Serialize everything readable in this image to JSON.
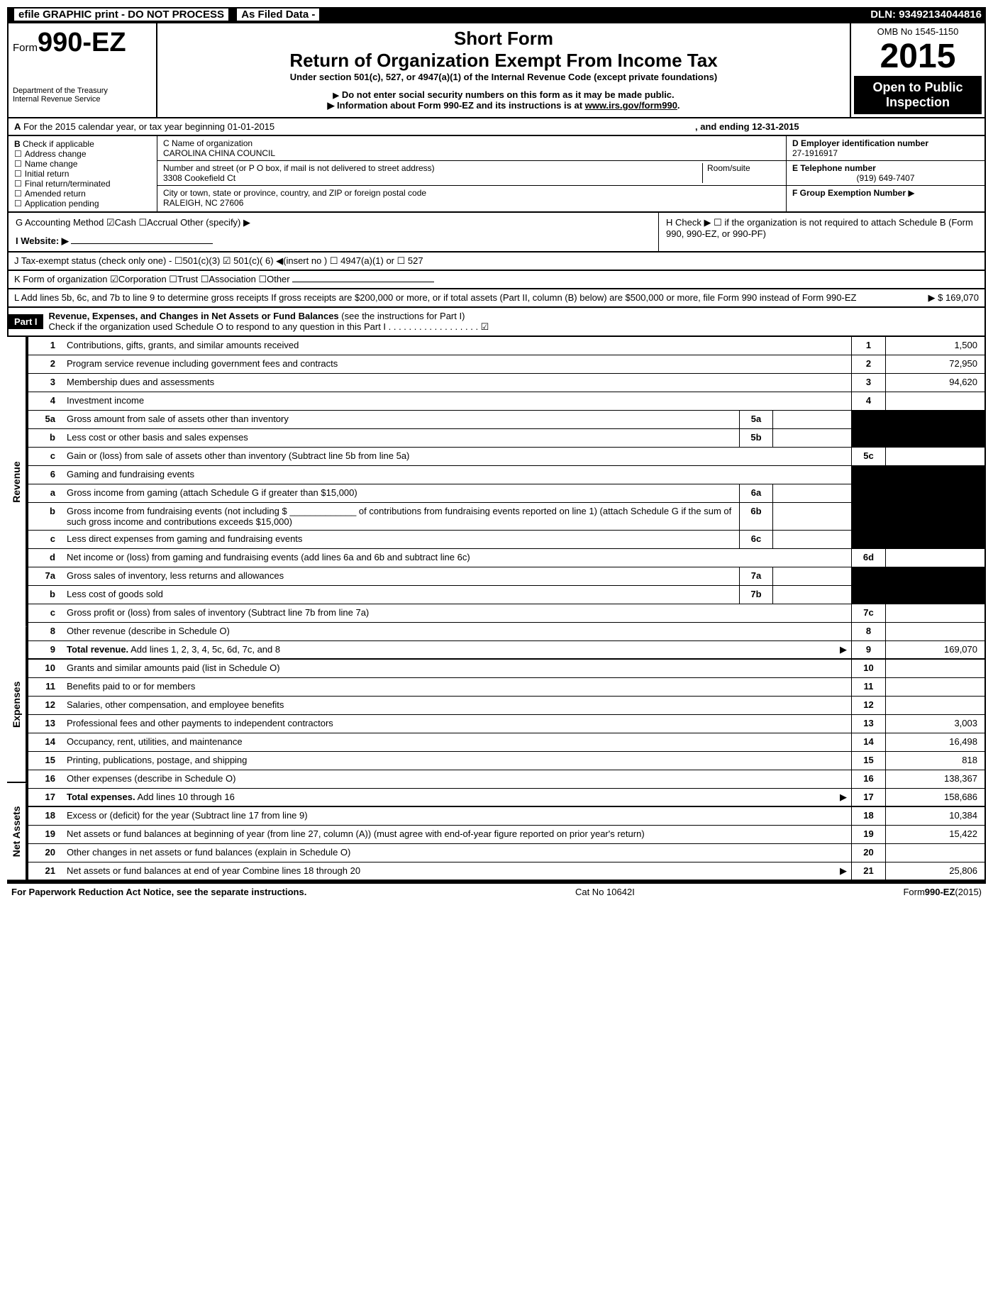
{
  "topbar": {
    "efile": "efile GRAPHIC print - DO NOT PROCESS",
    "asfiled": "As Filed Data -",
    "dln_label": "DLN:",
    "dln": "93492134044816"
  },
  "header": {
    "form_prefix": "Form",
    "form_no": "990-EZ",
    "dept1": "Department of the Treasury",
    "dept2": "Internal Revenue Service",
    "short": "Short Form",
    "title": "Return of Organization Exempt From Income Tax",
    "under": "Under section 501(c), 527, or 4947(a)(1) of the Internal Revenue Code (except private foundations)",
    "warn1": "Do not enter social security numbers on this form as it may be made public.",
    "warn2_pre": "Information about Form 990-EZ and its instructions is at ",
    "warn2_link": "www.irs.gov/form990",
    "omb": "OMB No  1545-1150",
    "year": "2015",
    "open1": "Open to Public",
    "open2": "Inspection"
  },
  "A": {
    "text": "For the 2015 calendar year, or tax year beginning 01-01-2015",
    "ending": ", and ending 12-31-2015"
  },
  "B": {
    "title": "Check if applicable",
    "items": [
      "Address change",
      "Name change",
      "Initial return",
      "Final return/terminated",
      "Amended return",
      "Application pending"
    ]
  },
  "C": {
    "name_lbl": "C Name of organization",
    "name": "CAROLINA CHINA COUNCIL",
    "street_lbl": "Number and street (or P  O  box, if mail is not delivered to street address)",
    "room_lbl": "Room/suite",
    "street": "3308 Cookefield Ct",
    "city_lbl": "City or town, state or province, country, and ZIP or foreign postal code",
    "city": "RALEIGH, NC  27606"
  },
  "D": {
    "lbl": "D Employer identification number",
    "val": "27-1916917"
  },
  "E": {
    "lbl": "E Telephone number",
    "val": "(919) 649-7407"
  },
  "F": {
    "lbl": "F Group Exemption Number",
    "arrow": "▶"
  },
  "G": {
    "text": "G Accounting Method   ☑Cash  ☐Accrual  Other (specify) ▶"
  },
  "H": {
    "text": "H  Check ▶ ☐ if the organization is not required to attach Schedule B (Form 990, 990-EZ, or 990-PF)"
  },
  "I": {
    "text": "I Website: ▶"
  },
  "J": {
    "text": "J Tax-exempt status (check only one) - ☐501(c)(3) ☑ 501(c)( 6) ◀(insert no ) ☐ 4947(a)(1) or ☐ 527"
  },
  "K": {
    "text": "K Form of organization  ☑Corporation  ☐Trust  ☐Association  ☐Other"
  },
  "L": {
    "text": "L Add lines 5b, 6c, and 7b to line 9 to determine gross receipts  If gross receipts are $200,000 or more, or if total assets (Part II, column (B) below) are $500,000 or more, file Form 990 instead of Form 990-EZ",
    "arrow": "▶",
    "val": "$ 169,070"
  },
  "part1": {
    "label": "Part I",
    "title": "Revenue, Expenses, and Changes in Net Assets or Fund Balances",
    "instr": "(see the instructions for Part I)",
    "check": "Check if the organization used Schedule O to respond to any question in this Part I  .  .  .  .  .  .  .  .  .  .  .  .  .  .  .  .  .  .  ☑"
  },
  "side": {
    "rev": "Revenue",
    "exp": "Expenses",
    "net": "Net Assets"
  },
  "lines": {
    "l1": {
      "n": "1",
      "d": "Contributions, gifts, grants, and similar amounts received",
      "box": "1",
      "v": "1,500"
    },
    "l2": {
      "n": "2",
      "d": "Program service revenue including government fees and contracts",
      "box": "2",
      "v": "72,950"
    },
    "l3": {
      "n": "3",
      "d": "Membership dues and assessments",
      "box": "3",
      "v": "94,620"
    },
    "l4": {
      "n": "4",
      "d": "Investment income",
      "box": "4",
      "v": ""
    },
    "l5a": {
      "n": "5a",
      "d": "Gross amount from sale of assets other than inventory",
      "sub": "5a"
    },
    "l5b": {
      "n": "b",
      "d": "Less  cost or other basis and sales expenses",
      "sub": "5b"
    },
    "l5c": {
      "n": "c",
      "d": "Gain or (loss) from sale of assets other than inventory (Subtract line 5b from line 5a)",
      "box": "5c",
      "v": "",
      "blk": true
    },
    "l6": {
      "n": "6",
      "d": "Gaming and fundraising events"
    },
    "l6a": {
      "n": "a",
      "d": "Gross income from gaming (attach Schedule G if greater than $15,000)",
      "sub": "6a"
    },
    "l6b": {
      "n": "b",
      "d": "Gross income from fundraising events (not including $ _____________ of contributions from fundraising events reported on line 1) (attach Schedule G if the sum of such gross income and contributions exceeds $15,000)",
      "sub": "6b"
    },
    "l6c": {
      "n": "c",
      "d": "Less  direct expenses from gaming and fundraising events",
      "sub": "6c"
    },
    "l6d": {
      "n": "d",
      "d": "Net income or (loss) from gaming and fundraising events (add lines 6a and 6b and subtract line 6c)",
      "box": "6d",
      "v": "",
      "blk": true
    },
    "l7a": {
      "n": "7a",
      "d": "Gross sales of inventory, less returns and allowances",
      "sub": "7a"
    },
    "l7b": {
      "n": "b",
      "d": "Less  cost of goods sold",
      "sub": "7b"
    },
    "l7c": {
      "n": "c",
      "d": "Gross profit or (loss) from sales of inventory (Subtract line 7b from line 7a)",
      "box": "7c",
      "v": "",
      "blk": true
    },
    "l8": {
      "n": "8",
      "d": "Other revenue (describe in Schedule O)",
      "box": "8",
      "v": ""
    },
    "l9": {
      "n": "9",
      "d": "Total revenue. Add lines 1, 2, 3, 4, 5c, 6d, 7c, and 8",
      "box": "9",
      "v": "169,070",
      "arrow": true,
      "bold": true
    },
    "l10": {
      "n": "10",
      "d": "Grants and similar amounts paid (list in Schedule O)",
      "box": "10",
      "v": ""
    },
    "l11": {
      "n": "11",
      "d": "Benefits paid to or for members",
      "box": "11",
      "v": ""
    },
    "l12": {
      "n": "12",
      "d": "Salaries, other compensation, and employee benefits",
      "box": "12",
      "v": ""
    },
    "l13": {
      "n": "13",
      "d": "Professional fees and other payments to independent contractors",
      "box": "13",
      "v": "3,003"
    },
    "l14": {
      "n": "14",
      "d": "Occupancy, rent, utilities, and maintenance",
      "box": "14",
      "v": "16,498"
    },
    "l15": {
      "n": "15",
      "d": "Printing, publications, postage, and shipping",
      "box": "15",
      "v": "818"
    },
    "l16": {
      "n": "16",
      "d": "Other expenses (describe in Schedule O)",
      "box": "16",
      "v": "138,367"
    },
    "l17": {
      "n": "17",
      "d": "Total expenses. Add lines 10 through 16",
      "box": "17",
      "v": "158,686",
      "arrow": true,
      "bold": true
    },
    "l18": {
      "n": "18",
      "d": "Excess or (deficit) for the year (Subtract line 17 from line 9)",
      "box": "18",
      "v": "10,384"
    },
    "l19": {
      "n": "19",
      "d": "Net assets or fund balances at beginning of year (from line 27, column (A)) (must agree with end-of-year figure reported on prior year's return)",
      "box": "19",
      "v": "15,422",
      "blk": true
    },
    "l20": {
      "n": "20",
      "d": "Other changes in net assets or fund balances (explain in Schedule O)",
      "box": "20",
      "v": ""
    },
    "l21": {
      "n": "21",
      "d": "Net assets or fund balances at end of year  Combine lines 18 through 20",
      "box": "21",
      "v": "25,806",
      "arrow": true
    }
  },
  "footer": {
    "left": "For Paperwork Reduction Act Notice, see the separate instructions.",
    "mid": "Cat No  10642I",
    "right_pre": "Form",
    "right_form": "990-EZ",
    "right_yr": "(2015)"
  }
}
